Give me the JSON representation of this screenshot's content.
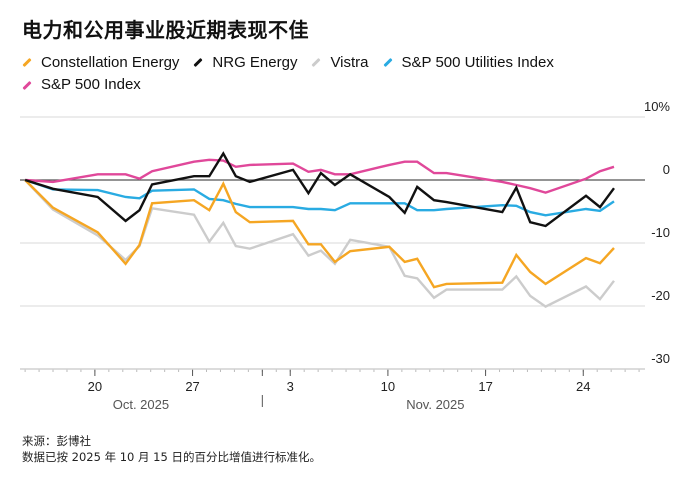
{
  "chart_data": {
    "type": "line",
    "title": "电力和公用事业股近期表现不佳",
    "xlabel": "",
    "ylabel": "",
    "x_unit": "days since Oct. 15, 2025",
    "xlim": [
      -1.8,
      45.5
    ],
    "ylim": [
      -30,
      10
    ],
    "y_ticks": [
      {
        "value": 10,
        "label": "10%"
      },
      {
        "value": 0,
        "label": "0"
      },
      {
        "value": -10,
        "label": "-10"
      },
      {
        "value": -20,
        "label": "-20"
      },
      {
        "value": -30,
        "label": "-30"
      }
    ],
    "x_ticks": [
      {
        "value": 5,
        "label": "20"
      },
      {
        "value": 12,
        "label": "27"
      },
      {
        "value": 19,
        "label": "3"
      },
      {
        "value": 26,
        "label": "10"
      },
      {
        "value": 33,
        "label": "17"
      },
      {
        "value": 40,
        "label": "24"
      }
    ],
    "x_groups": [
      {
        "label": "Oct. 2025",
        "center": 8.3
      },
      {
        "label": "Nov. 2025",
        "center": 29.4
      }
    ],
    "month_divider": 17,
    "grid": true,
    "legend_position": "top-left",
    "series": [
      {
        "name": "Constellation Energy",
        "color": "#f5a623",
        "x": [
          0,
          2,
          5.2,
          7.2,
          8.2,
          9.1,
          12.1,
          13.2,
          14.2,
          15.1,
          16.1,
          19.2,
          20.3,
          21.2,
          22.2,
          23.3,
          26.1,
          27.2,
          28.1,
          29.3,
          30.2,
          34.2,
          35.2,
          36.2,
          37.3,
          40.2,
          41.2,
          42.2
        ],
        "y": [
          0,
          -4.4,
          -8.3,
          -13.3,
          -10.3,
          -3.7,
          -3.2,
          -4.8,
          -0.6,
          -5.1,
          -6.7,
          -6.5,
          -10.2,
          -10.2,
          -13,
          -11.3,
          -10.6,
          -13,
          -12.5,
          -17,
          -16.5,
          -16.3,
          -11.9,
          -14.6,
          -16.5,
          -12.4,
          -13.2,
          -10.8
        ]
      },
      {
        "name": "NRG Energy",
        "color": "#111111",
        "x": [
          0,
          2,
          5.2,
          7.2,
          8.2,
          9.1,
          12.1,
          13.2,
          14.2,
          15.1,
          16.1,
          19.2,
          20.3,
          21.2,
          22.2,
          23.3,
          26.1,
          27.2,
          28.1,
          29.3,
          30.2,
          34.2,
          35.2,
          36.2,
          37.3,
          40.2,
          41.2,
          42.2
        ],
        "y": [
          0,
          -1.4,
          -2.7,
          -6.5,
          -4.8,
          -0.7,
          0.6,
          0.6,
          4.2,
          0.6,
          -0.3,
          1.6,
          -2.1,
          1.1,
          -0.8,
          0.9,
          -2.7,
          -5.2,
          -1.1,
          -3.2,
          -3.5,
          -5.1,
          -1.2,
          -6.7,
          -7.3,
          -2.5,
          -4.3,
          -1.3
        ]
      },
      {
        "name": "Vistra",
        "color": "#cccccc",
        "x": [
          0,
          2,
          5.2,
          7.2,
          8.2,
          9.1,
          12.1,
          13.2,
          14.2,
          15.1,
          16.1,
          19.2,
          20.3,
          21.2,
          22.2,
          23.3,
          26.1,
          27.2,
          28.1,
          29.3,
          30.2,
          34.2,
          35.2,
          36.2,
          37.3,
          40.2,
          41.2,
          42.2
        ],
        "y": [
          0,
          -4.7,
          -8.8,
          -12.7,
          -10.5,
          -4.5,
          -5.5,
          -9.8,
          -6.8,
          -10.5,
          -10.9,
          -8.6,
          -12,
          -11.2,
          -13.3,
          -9.5,
          -10.6,
          -15.2,
          -15.6,
          -18.7,
          -17.4,
          -17.4,
          -15.3,
          -18.4,
          -20.1,
          -16.9,
          -18.9,
          -16
        ]
      },
      {
        "name": "S&P 500 Utilities Index",
        "color": "#29abe2",
        "x": [
          0,
          2,
          5.2,
          7.2,
          8.2,
          9.1,
          12.1,
          13.2,
          14.2,
          15.1,
          16.1,
          19.2,
          20.3,
          21.2,
          22.2,
          23.3,
          26.1,
          27.2,
          28.1,
          29.3,
          30.2,
          34.2,
          35.2,
          36.2,
          37.3,
          40.2,
          41.2,
          42.2
        ],
        "y": [
          0,
          -1.5,
          -1.6,
          -2.7,
          -2.9,
          -1.7,
          -1.5,
          -3,
          -3.2,
          -3.8,
          -4.3,
          -4.3,
          -4.6,
          -4.6,
          -4.8,
          -3.7,
          -3.7,
          -3.7,
          -4.8,
          -4.8,
          -4.6,
          -4,
          -4.1,
          -5.1,
          -5.6,
          -4.6,
          -4.9,
          -3.4
        ]
      },
      {
        "name": "S&P 500 Index",
        "color": "#e0489a",
        "x": [
          0,
          2,
          5.2,
          7.2,
          8.2,
          9.1,
          12.1,
          13.2,
          14.2,
          15.1,
          16.1,
          19.2,
          20.3,
          21.2,
          22.2,
          23.3,
          26.1,
          27.2,
          28.1,
          29.3,
          30.2,
          34.2,
          35.2,
          36.2,
          37.3,
          40.2,
          41.2,
          42.2
        ],
        "y": [
          0,
          -0.3,
          0.9,
          0.9,
          0.2,
          1.4,
          2.9,
          3.2,
          3.1,
          2.1,
          2.4,
          2.6,
          1.3,
          1.6,
          0.9,
          0.9,
          2.4,
          2.9,
          2.9,
          1.1,
          1.1,
          -0.3,
          -0.8,
          -1.3,
          -2,
          0.2,
          1.4,
          2.1
        ]
      }
    ]
  },
  "title": "电力和公用事业股近期表现不佳",
  "footer": {
    "source": "来源：彭博社",
    "note": "数据已按 2025 年 10 月 15 日的百分比增值进行标准化。"
  }
}
